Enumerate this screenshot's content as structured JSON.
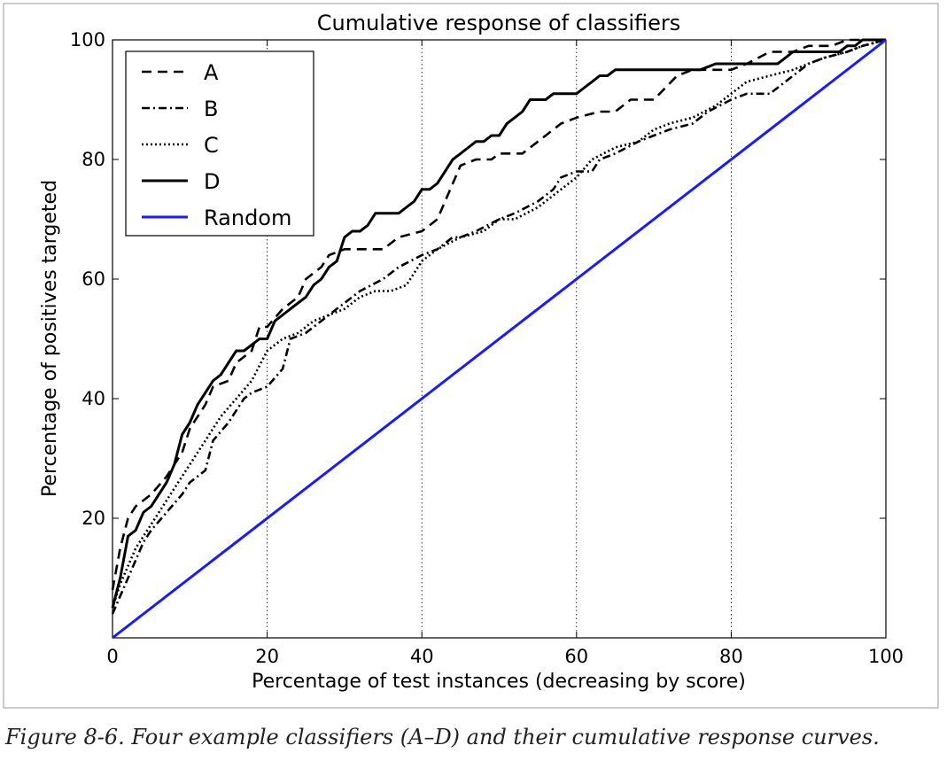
{
  "chart_data": {
    "type": "line",
    "title": "Cumulative response of classifiers",
    "xlabel": "Percentage of test instances (decreasing by score)",
    "ylabel": "Percentage of positives targeted",
    "xlim": [
      0,
      100
    ],
    "ylim": [
      0,
      100
    ],
    "xticks": [
      0,
      20,
      40,
      60,
      80,
      100
    ],
    "yticks": [
      20,
      40,
      60,
      80,
      100
    ],
    "grid": "vertical dotted at x=20,40,60,80",
    "legend_position": "top-left",
    "series": [
      {
        "name": "A",
        "color": "#000000",
        "style": "dashed",
        "x": [
          0,
          1,
          2,
          3,
          5,
          7,
          8,
          9,
          10,
          12,
          13,
          15,
          16,
          18,
          19,
          20,
          22,
          24,
          25,
          27,
          28,
          30,
          33,
          35,
          37,
          40,
          42,
          43,
          45,
          47,
          49,
          50,
          53,
          55,
          58,
          60,
          63,
          65,
          67,
          70,
          73,
          75,
          78,
          80,
          82,
          85,
          88,
          90,
          93,
          95,
          98,
          100
        ],
        "y": [
          8,
          15,
          20,
          22,
          24,
          27,
          29,
          31,
          35,
          39,
          42,
          43,
          46,
          48,
          52,
          52,
          55,
          57,
          60,
          62,
          64,
          65,
          65,
          65,
          67,
          68,
          70,
          73,
          79,
          80,
          80,
          81,
          81,
          83,
          86,
          87,
          88,
          88,
          90,
          90,
          94,
          95,
          95,
          95,
          96,
          98,
          98,
          99,
          99,
          100,
          100,
          100
        ]
      },
      {
        "name": "B",
        "color": "#000000",
        "style": "dashdot",
        "x": [
          0,
          1,
          2,
          3,
          4,
          5,
          7,
          9,
          10,
          12,
          13,
          15,
          17,
          18,
          20,
          22,
          23,
          25,
          27,
          28,
          30,
          32,
          35,
          37,
          40,
          42,
          44,
          45,
          47,
          50,
          52,
          55,
          57,
          58,
          60,
          62,
          63,
          65,
          68,
          70,
          72,
          75,
          77,
          80,
          82,
          85,
          87,
          88,
          90,
          92,
          95,
          97,
          100
        ],
        "y": [
          4,
          7,
          10,
          13,
          16,
          18,
          21,
          24,
          26,
          28,
          33,
          36,
          40,
          41,
          42,
          45,
          50,
          51,
          53,
          54,
          56,
          58,
          60,
          62,
          64,
          65,
          67,
          67,
          68,
          70,
          71,
          73,
          75,
          77,
          78,
          78,
          80,
          81,
          83,
          84,
          85,
          86,
          88,
          90,
          91,
          91,
          93,
          94,
          96,
          97,
          98,
          99,
          100
        ]
      },
      {
        "name": "C",
        "color": "#000000",
        "style": "dotted",
        "x": [
          0,
          1,
          2,
          3,
          4,
          5,
          6,
          8,
          10,
          12,
          14,
          16,
          18,
          20,
          22,
          24,
          26,
          28,
          30,
          32,
          34,
          36,
          38,
          40,
          42,
          45,
          48,
          50,
          52,
          55,
          58,
          60,
          62,
          65,
          68,
          70,
          72,
          75,
          78,
          80,
          82,
          85,
          88,
          90,
          92,
          95,
          97,
          100
        ],
        "y": [
          5,
          9,
          12,
          15,
          17,
          19,
          21,
          25,
          29,
          33,
          37,
          40,
          43,
          48,
          50,
          51,
          53,
          54,
          55,
          57,
          58,
          58,
          59,
          63,
          65,
          67,
          68,
          70,
          70,
          72,
          75,
          77,
          80,
          82,
          83,
          85,
          86,
          87,
          89,
          91,
          93,
          94,
          95,
          96,
          97,
          98,
          99,
          100
        ]
      },
      {
        "name": "D",
        "color": "#000000",
        "style": "solid",
        "x": [
          0,
          1,
          2,
          3,
          4,
          5,
          6,
          7,
          8,
          9,
          10,
          11,
          12,
          13,
          14,
          15,
          16,
          17,
          18,
          19,
          20,
          21,
          22,
          23,
          24,
          25,
          26,
          27,
          28,
          29,
          30,
          31,
          32,
          33,
          34,
          35,
          36,
          37,
          38,
          39,
          40,
          41,
          42,
          43,
          44,
          45,
          46,
          47,
          48,
          49,
          50,
          51,
          52,
          53,
          54,
          55,
          56,
          57,
          58,
          59,
          60,
          61,
          62,
          63,
          64,
          65,
          66,
          67,
          68,
          70,
          72,
          74,
          76,
          78,
          80,
          82,
          84,
          86,
          87,
          88,
          90,
          91,
          92,
          93,
          94,
          95,
          96,
          97,
          98,
          99,
          100
        ],
        "y": [
          5,
          10,
          17,
          18,
          21,
          22,
          24,
          26,
          29,
          34,
          36,
          39,
          41,
          43,
          44,
          46,
          48,
          48,
          49,
          50,
          50,
          53,
          54,
          55,
          56,
          57,
          59,
          60,
          62,
          63,
          67,
          68,
          68,
          69,
          71,
          71,
          71,
          71,
          72,
          73,
          75,
          75,
          76,
          78,
          80,
          81,
          82,
          83,
          83,
          84,
          84,
          86,
          87,
          88,
          90,
          90,
          90,
          91,
          91,
          91,
          91,
          92,
          93,
          94,
          94,
          95,
          95,
          95,
          95,
          95,
          95,
          95,
          95,
          96,
          96,
          96,
          96,
          96,
          97,
          98,
          98,
          98,
          98,
          98,
          98,
          99,
          99,
          100,
          100,
          100,
          100
        ]
      },
      {
        "name": "Random",
        "color": "#1a1aff",
        "style": "solid",
        "x": [
          0,
          100
        ],
        "y": [
          0,
          100
        ]
      }
    ]
  },
  "caption": "Figure 8-6. Four example classifiers (A–D) and their cumulative response curves."
}
